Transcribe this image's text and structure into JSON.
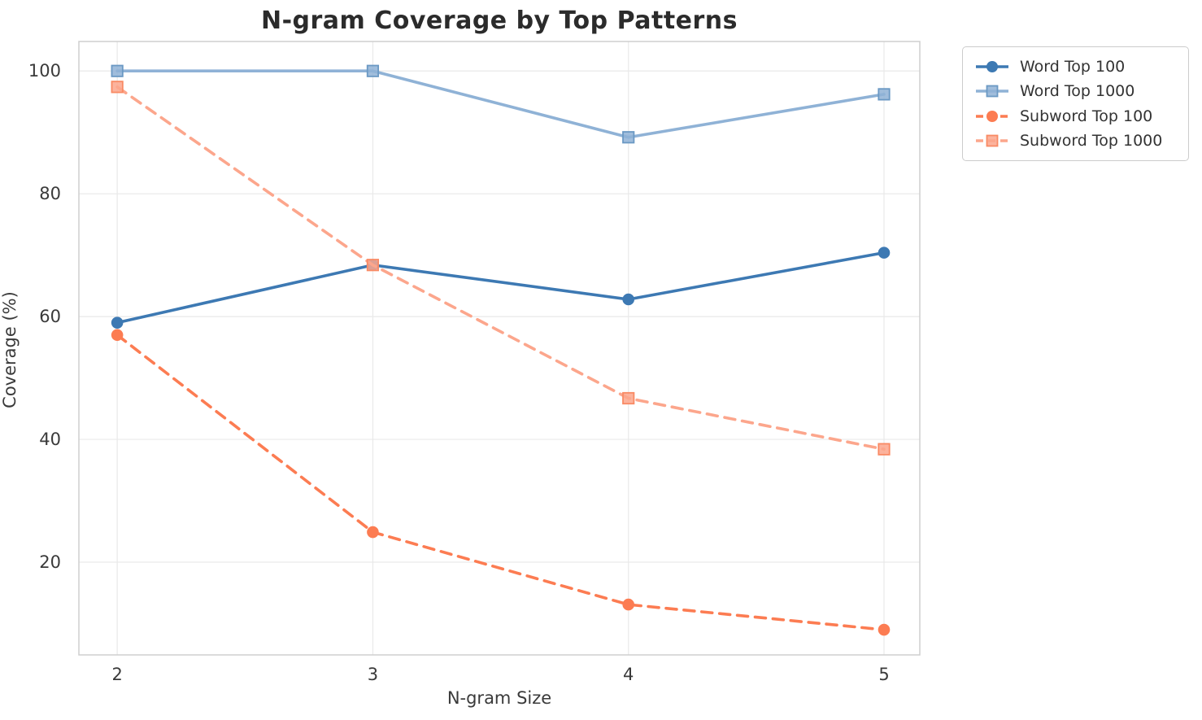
{
  "chart_data": {
    "type": "line",
    "title": "N-gram Coverage by Top Patterns",
    "xlabel": "N-gram Size",
    "ylabel": "Coverage (%)",
    "x": [
      2,
      3,
      4,
      5
    ],
    "x_tick_labels": [
      "2",
      "3",
      "4",
      "5"
    ],
    "y_ticks": [
      20,
      40,
      60,
      80,
      100
    ],
    "y_tick_labels": [
      "20",
      "40",
      "60",
      "80",
      "100"
    ],
    "xlim": [
      1.85,
      5.14
    ],
    "ylim": [
      4.9,
      104.8
    ],
    "grid": true,
    "legend_position": "outside-top-right",
    "colors": {
      "word_top_100": "#3d79b3",
      "word_top_1000": "#8fb2d6",
      "subword_top_100": "#fc7c52",
      "subword_top_1000": "#fca68c",
      "grid": "#e9e9e9",
      "spine": "#cfcfcf",
      "tick_text": "#3a3a3a",
      "title_text": "#2b2b2b"
    },
    "series": [
      {
        "name": "Word Top 100",
        "values": [
          59.0,
          68.4,
          62.8,
          70.4
        ],
        "color": "#3d79b3",
        "edge": "#2f6398",
        "line_style": "solid",
        "marker": "circle"
      },
      {
        "name": "Word Top 1000",
        "values": [
          100.0,
          100.0,
          89.2,
          96.2
        ],
        "color": "#8fb2d6",
        "edge": "#6b99c4",
        "line_style": "solid",
        "marker": "square"
      },
      {
        "name": "Subword Top 100",
        "values": [
          57.0,
          24.9,
          13.1,
          9.0
        ],
        "color": "#fc7c52",
        "edge": "#e8653c",
        "line_style": "dashed",
        "marker": "circle"
      },
      {
        "name": "Subword Top 1000",
        "values": [
          97.4,
          68.4,
          46.7,
          38.4
        ],
        "color": "#fca68c",
        "edge": "#f98a64",
        "line_style": "dashed",
        "marker": "square"
      }
    ]
  }
}
